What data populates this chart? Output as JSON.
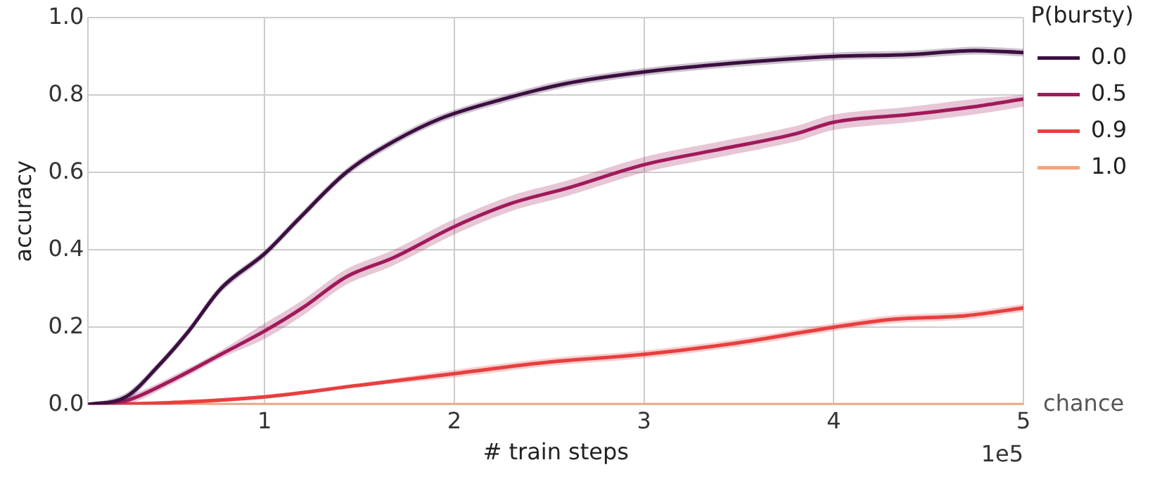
{
  "chart_data": {
    "type": "line",
    "xlabel": "# train steps",
    "ylabel": "accuracy",
    "legend_title": "P(bursty)",
    "legend": "right",
    "grid": true,
    "marker": "none",
    "line_style": "solid",
    "xlim": [
      0.07,
      5
    ],
    "xticks": [
      1,
      2,
      3,
      4,
      5
    ],
    "ylim": [
      0,
      1
    ],
    "yticks": [
      {
        "value": 0,
        "label": "0.0"
      },
      0.2,
      0.4,
      0.6,
      0.8,
      {
        "value": 1,
        "label": "1.0"
      }
    ],
    "annotations": [
      "1e5",
      {
        "text": "chance",
        "x": 5,
        "y": 0
      }
    ],
    "series": [
      {
        "name": "0.0",
        "color": "#3b0f40",
        "x": [
          0.07,
          0.27,
          0.44,
          0.6,
          0.77,
          1,
          1.18,
          1.43,
          1.68,
          1.93,
          2.26,
          2.59,
          3,
          3.41,
          4,
          4.4,
          4.74,
          5
        ],
        "values": [
          0,
          0.02,
          0.1,
          0.19,
          0.3,
          0.39,
          0.48,
          0.6,
          0.68,
          0.74,
          0.79,
          0.83,
          0.86,
          0.88,
          0.9,
          0.905,
          0.915,
          0.91
        ],
        "lower": [
          0,
          0.01,
          0.09,
          0.18,
          0.29,
          0.38,
          0.47,
          0.59,
          0.67,
          0.73,
          0.78,
          0.82,
          0.85,
          0.87,
          0.89,
          0.895,
          0.905,
          0.9
        ],
        "upper": [
          0,
          0.03,
          0.11,
          0.2,
          0.31,
          0.4,
          0.49,
          0.61,
          0.69,
          0.75,
          0.8,
          0.84,
          0.87,
          0.89,
          0.91,
          0.915,
          0.925,
          0.92
        ]
      },
      {
        "name": "0.5",
        "color": "#a11a5b",
        "x": [
          0.07,
          0.27,
          0.5,
          0.77,
          1,
          1.2,
          1.43,
          1.68,
          2,
          2.3,
          2.6,
          3,
          3.4,
          3.8,
          4,
          4.4,
          4.74,
          5
        ],
        "values": [
          0,
          0.01,
          0.06,
          0.13,
          0.19,
          0.25,
          0.33,
          0.38,
          0.46,
          0.52,
          0.56,
          0.62,
          0.66,
          0.7,
          0.73,
          0.75,
          0.77,
          0.79
        ],
        "lower": [
          0,
          0,
          0.05,
          0.12,
          0.17,
          0.23,
          0.31,
          0.36,
          0.44,
          0.5,
          0.54,
          0.6,
          0.64,
          0.68,
          0.71,
          0.73,
          0.75,
          0.77
        ],
        "upper": [
          0,
          0.02,
          0.07,
          0.14,
          0.21,
          0.27,
          0.35,
          0.4,
          0.48,
          0.54,
          0.58,
          0.64,
          0.68,
          0.72,
          0.75,
          0.77,
          0.79,
          0.8
        ]
      },
      {
        "name": "0.9",
        "color": "#e83f3f",
        "x": [
          0.07,
          0.5,
          1,
          1.5,
          2,
          2.5,
          3,
          3.5,
          4,
          4.3,
          4.7,
          5
        ],
        "values": [
          0,
          0.005,
          0.02,
          0.05,
          0.08,
          0.11,
          0.13,
          0.16,
          0.2,
          0.22,
          0.23,
          0.25
        ],
        "lower": [
          0,
          0,
          0.015,
          0.045,
          0.07,
          0.1,
          0.12,
          0.15,
          0.19,
          0.21,
          0.22,
          0.24
        ],
        "upper": [
          0,
          0.01,
          0.025,
          0.055,
          0.09,
          0.12,
          0.14,
          0.17,
          0.21,
          0.23,
          0.24,
          0.26
        ]
      },
      {
        "name": "1.0",
        "color": "#f6a47c",
        "x": [
          0.07,
          5
        ],
        "values": [
          0,
          0
        ]
      }
    ]
  }
}
